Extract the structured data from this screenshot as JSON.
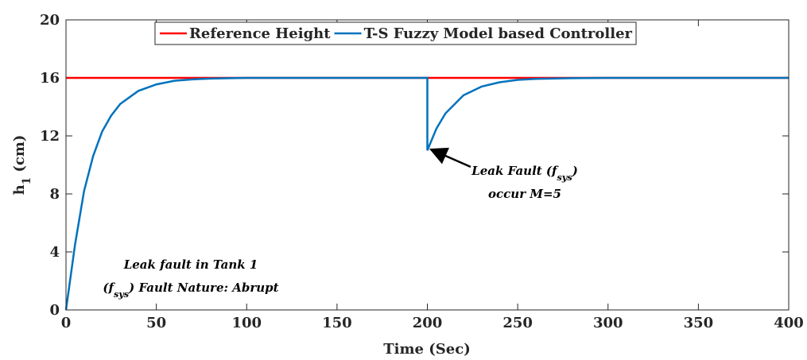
{
  "chart_data": {
    "type": "line",
    "xlabel": "Time (Sec)",
    "ylabel": [
      {
        "text": "h"
      },
      {
        "text": "1",
        "sub": true
      },
      {
        "text": " (cm)"
      }
    ],
    "xlim": [
      0,
      400
    ],
    "ylim": [
      0,
      20
    ],
    "xticks": [
      0,
      50,
      100,
      150,
      200,
      250,
      300,
      350,
      400
    ],
    "yticks": [
      0,
      4,
      8,
      12,
      16,
      20
    ],
    "legend": "top",
    "series": [
      {
        "name": "Reference Height",
        "color": "#ff0000",
        "x": [
          0,
          400
        ],
        "values": [
          16,
          16
        ]
      },
      {
        "name": "T-S Fuzzy Model based Controller",
        "color": "#0072bd",
        "x": [
          0,
          5,
          10,
          15,
          20,
          25,
          30,
          40,
          50,
          60,
          70,
          80,
          100,
          150,
          200,
          200,
          205,
          210,
          220,
          230,
          240,
          250,
          260,
          280,
          300,
          350,
          400
        ],
        "values": [
          0,
          4.5,
          8.2,
          10.6,
          12.3,
          13.4,
          14.2,
          15.1,
          15.55,
          15.8,
          15.9,
          15.95,
          16,
          16,
          16,
          11,
          12.5,
          13.55,
          14.8,
          15.4,
          15.7,
          15.86,
          15.93,
          15.98,
          16,
          16,
          16
        ]
      }
    ],
    "annotations": [
      {
        "lines": [
          [
            {
              "text": "Leak Fault (f"
            },
            {
              "text": "sys",
              "sub": true
            },
            {
              "text": ")"
            }
          ],
          [
            {
              "text": "occur M=5"
            }
          ]
        ]
      },
      {
        "lines": [
          [
            {
              "text": "Leak fault in Tank 1"
            }
          ],
          [
            {
              "text": "(f"
            },
            {
              "text": "sys",
              "sub": true
            },
            {
              "text": ") Fault Nature: Abrupt"
            }
          ]
        ]
      }
    ]
  }
}
